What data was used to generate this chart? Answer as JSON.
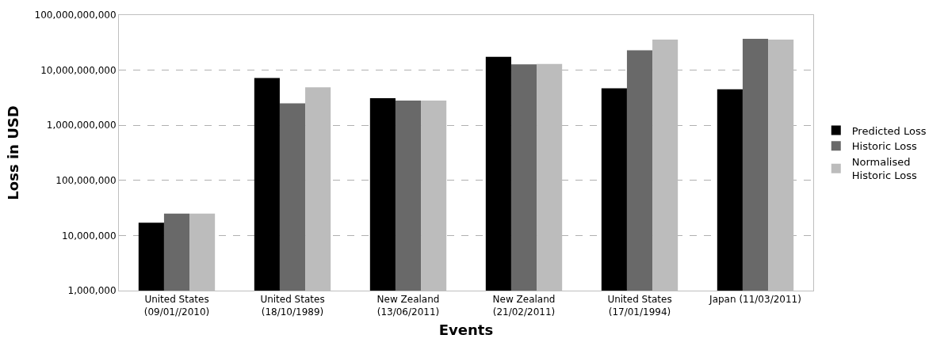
{
  "chart_data": {
    "type": "bar",
    "xlabel": "Events",
    "ylabel": "Loss in USD",
    "categories": [
      "United States\n(09/01//2010)",
      "United States\n(18/10/1989)",
      "New Zealand\n(13/06/2011)",
      "New Zealand\n(21/02/2011)",
      "United States\n(17/01/1994)",
      "Japan (11/03/2011)"
    ],
    "series": [
      {
        "name": "Predicted Loss",
        "color": "#000000",
        "values": [
          17000000,
          7200000000,
          3100000000,
          17400000000,
          4700000000,
          4500000000
        ]
      },
      {
        "name": "Historic Loss",
        "color": "#696969",
        "values": [
          25000000,
          2500000000,
          2800000000,
          12800000000,
          23000000000,
          37000000000
        ]
      },
      {
        "name": "Normalised\nHistoric Loss",
        "color": "#bcbcbc",
        "values": [
          25000000,
          4900000000,
          2800000000,
          13000000000,
          36000000000,
          36000000000
        ]
      }
    ],
    "log": "y",
    "ylim": [
      1000000,
      100000000000
    ],
    "yticks": [
      {
        "value": 1000000,
        "label": "1,000,000"
      },
      {
        "value": 10000000,
        "label": "10,000,000"
      },
      {
        "value": 100000000,
        "label": "100,000,000"
      },
      {
        "value": 1000000000,
        "label": "1,000,000,000"
      },
      {
        "value": 10000000000,
        "label": "10,000,000,000"
      },
      {
        "value": 100000000000,
        "label": "100,000,000,000"
      }
    ],
    "grid": "y",
    "legend": "right"
  }
}
